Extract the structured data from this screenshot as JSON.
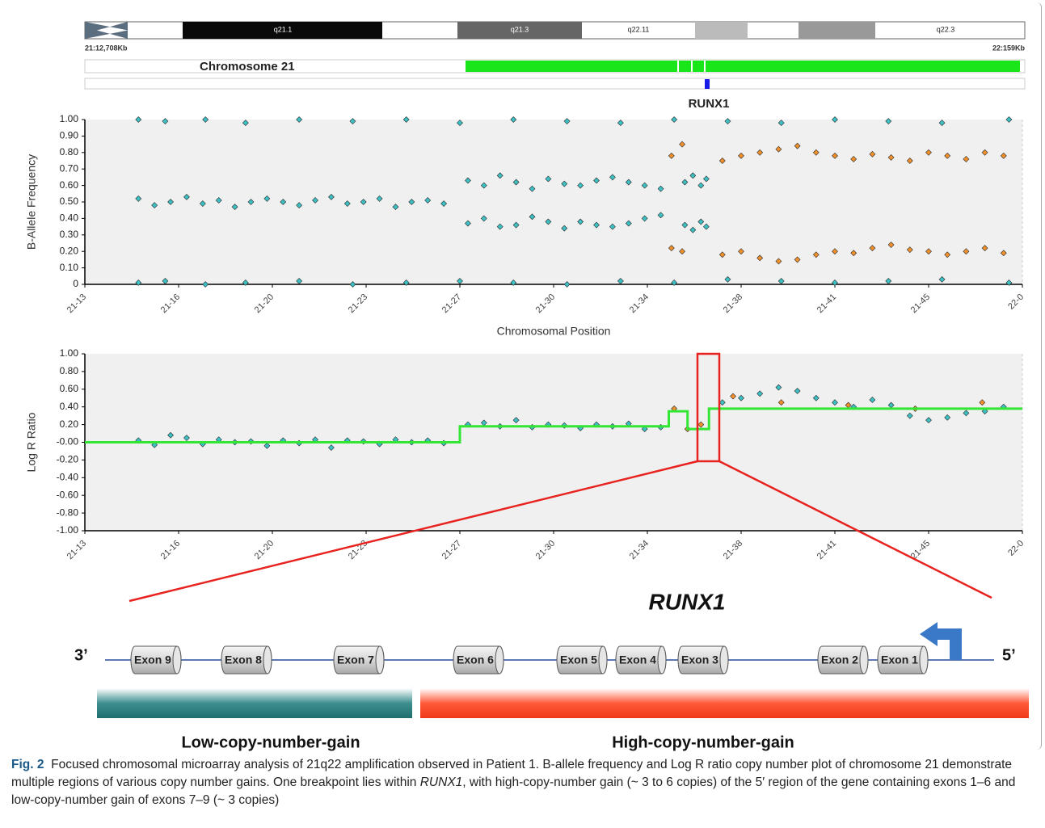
{
  "ideogram": {
    "bands": [
      "q21.1",
      "q21.3",
      "q22.11",
      "q22.3"
    ],
    "start_label": "21:12,708Kb",
    "end_label": "22:159Kb",
    "track_label": "Chromosome 21",
    "gene_label": "RUNX1"
  },
  "chart_data": [
    {
      "type": "scatter",
      "ylabel": "B-Allele Frequency",
      "xlabel": "Chromosomal Position",
      "xlim": [
        13,
        48
      ],
      "xticks": [
        {
          "value": 13,
          "label": "21-13"
        },
        {
          "value": 16.5,
          "label": "21-16"
        },
        {
          "value": 20,
          "label": "21-20"
        },
        {
          "value": 23.5,
          "label": "21-23"
        },
        {
          "value": 27,
          "label": "21-27"
        },
        {
          "value": 30.5,
          "label": "21-30"
        },
        {
          "value": 34,
          "label": "21-34"
        },
        {
          "value": 37.5,
          "label": "21-38"
        },
        {
          "value": 41,
          "label": "21-41"
        },
        {
          "value": 44.5,
          "label": "21-45"
        },
        {
          "value": 48,
          "label": "22-0"
        }
      ],
      "ylim": [
        0,
        1
      ],
      "yticks": [
        0,
        {
          "value": 0.1,
          "label": "0.10"
        },
        {
          "value": 0.2,
          "label": "0.20"
        },
        {
          "value": 0.3,
          "label": "0.30"
        },
        {
          "value": 0.4,
          "label": "0.40"
        },
        {
          "value": 0.5,
          "label": "0.50"
        },
        {
          "value": 0.6,
          "label": "0.60"
        },
        {
          "value": 0.7,
          "label": "0.70"
        },
        {
          "value": 0.8,
          "label": "0.80"
        },
        {
          "value": 0.9,
          "label": "0.90"
        },
        {
          "value": 1,
          "label": "1.00"
        }
      ],
      "series": [
        {
          "color": "#3cc0c4",
          "x": [
            15,
            16,
            17.5,
            19,
            21,
            23,
            25,
            27,
            29,
            31,
            33,
            35,
            37,
            39,
            41,
            43,
            45,
            47.5
          ],
          "values": [
            1,
            0.99,
            1,
            0.98,
            1,
            0.99,
            1,
            0.98,
            1,
            0.99,
            0.98,
            1,
            0.99,
            0.98,
            1,
            0.99,
            0.98,
            1
          ]
        },
        {
          "color": "#3cc0c4",
          "x": [
            15,
            16,
            17.5,
            19,
            21,
            23,
            25,
            27,
            29,
            31,
            33,
            35,
            37,
            39,
            41,
            43,
            45,
            47.5
          ],
          "values": [
            0.01,
            0.02,
            0,
            0.01,
            0.02,
            0,
            0.01,
            0.02,
            0.01,
            0,
            0.02,
            0.01,
            0.03,
            0.02,
            0.01,
            0.02,
            0.03,
            0.01
          ]
        },
        {
          "color": "#3cc0c4",
          "x": [
            15,
            15.6,
            16.2,
            16.8,
            17.4,
            18,
            18.6,
            19.2,
            19.8,
            20.4,
            21,
            21.6,
            22.2,
            22.8,
            23.4,
            24,
            24.6,
            25.2,
            25.8,
            26.4
          ],
          "values": [
            0.52,
            0.48,
            0.5,
            0.53,
            0.49,
            0.51,
            0.47,
            0.5,
            0.52,
            0.5,
            0.48,
            0.51,
            0.53,
            0.49,
            0.5,
            0.52,
            0.47,
            0.5,
            0.51,
            0.49
          ]
        },
        {
          "color": "#3cc0c4",
          "x": [
            27.3,
            27.9,
            28.5,
            29.1,
            29.7,
            30.3,
            30.9,
            31.5,
            32.1,
            32.7,
            33.3,
            33.9,
            34.5,
            35.4,
            35.7,
            36,
            36.2
          ],
          "values": [
            0.63,
            0.6,
            0.66,
            0.62,
            0.58,
            0.64,
            0.61,
            0.6,
            0.63,
            0.65,
            0.62,
            0.6,
            0.58,
            0.62,
            0.66,
            0.6,
            0.64
          ]
        },
        {
          "color": "#3cc0c4",
          "x": [
            27.3,
            27.9,
            28.5,
            29.1,
            29.7,
            30.3,
            30.9,
            31.5,
            32.1,
            32.7,
            33.3,
            33.9,
            34.5,
            35.4,
            35.7,
            36,
            36.2
          ],
          "values": [
            0.37,
            0.4,
            0.35,
            0.36,
            0.41,
            0.38,
            0.34,
            0.38,
            0.36,
            0.35,
            0.37,
            0.4,
            0.42,
            0.36,
            0.33,
            0.38,
            0.35
          ]
        },
        {
          "color": "#f0902c",
          "x": [
            34.9,
            35.3,
            36.8,
            37.5,
            38.2,
            38.9,
            39.6,
            40.3,
            41,
            41.7,
            42.4,
            43.1,
            43.8,
            44.5,
            45.2,
            45.9,
            46.6,
            47.3
          ],
          "values": [
            0.78,
            0.85,
            0.75,
            0.78,
            0.8,
            0.82,
            0.84,
            0.8,
            0.78,
            0.76,
            0.79,
            0.77,
            0.75,
            0.8,
            0.78,
            0.76,
            0.8,
            0.78
          ]
        },
        {
          "color": "#f0902c",
          "x": [
            34.9,
            35.3,
            36.8,
            37.5,
            38.2,
            38.9,
            39.6,
            40.3,
            41,
            41.7,
            42.4,
            43.1,
            43.8,
            44.5,
            45.2,
            45.9,
            46.6,
            47.3
          ],
          "values": [
            0.22,
            0.2,
            0.18,
            0.2,
            0.16,
            0.14,
            0.15,
            0.18,
            0.2,
            0.19,
            0.22,
            0.24,
            0.21,
            0.2,
            0.18,
            0.2,
            0.22,
            0.19
          ]
        }
      ]
    },
    {
      "type": "scatter",
      "ylabel": "Log R Ratio",
      "xlim": [
        13,
        48
      ],
      "xticks": [
        {
          "value": 13,
          "label": "21-13"
        },
        {
          "value": 16.5,
          "label": "21-16"
        },
        {
          "value": 20,
          "label": "21-20"
        },
        {
          "value": 23.5,
          "label": "21-23"
        },
        {
          "value": 27,
          "label": "21-27"
        },
        {
          "value": 30.5,
          "label": "21-30"
        },
        {
          "value": 34,
          "label": "21-34"
        },
        {
          "value": 37.5,
          "label": "21-38"
        },
        {
          "value": 41,
          "label": "21-41"
        },
        {
          "value": 44.5,
          "label": "21-45"
        },
        {
          "value": 48,
          "label": "22-0"
        }
      ],
      "ylim": [
        -1,
        1
      ],
      "yticks": [
        {
          "value": -1,
          "label": "-1.00"
        },
        {
          "value": -0.8,
          "label": "-0.80"
        },
        {
          "value": -0.6,
          "label": "-0.60"
        },
        {
          "value": -0.4,
          "label": "-0.40"
        },
        {
          "value": -0.2,
          "label": "-0.20"
        },
        {
          "value": 0,
          "label": "-0.00"
        },
        {
          "value": 0.2,
          "label": "0.20"
        },
        {
          "value": 0.4,
          "label": "0.40"
        },
        {
          "value": 0.6,
          "label": "0.60"
        },
        {
          "value": 0.8,
          "label": "0.80"
        },
        {
          "value": 1,
          "label": "1.00"
        }
      ],
      "series": [
        {
          "color": "#3cc0c4",
          "x": [
            15,
            15.6,
            16.2,
            16.8,
            17.4,
            18,
            18.6,
            19.2,
            19.8,
            20.4,
            21,
            21.6,
            22.2,
            22.8,
            23.4,
            24,
            24.6,
            25.2,
            25.8,
            26.4,
            27.3,
            27.9,
            28.5,
            29.1,
            29.7,
            30.3,
            30.9,
            31.5,
            32.1,
            32.7,
            33.3,
            33.9,
            34.5,
            36.8,
            37.5,
            38.2,
            38.9,
            39.6,
            40.3,
            41,
            41.7,
            42.4,
            43.1,
            43.8,
            44.5,
            45.2,
            45.9,
            46.6,
            47.3
          ],
          "values": [
            0.02,
            -0.03,
            0.08,
            0.05,
            -0.02,
            0.03,
            0,
            0.01,
            -0.04,
            0.02,
            -0.01,
            0.03,
            -0.06,
            0.02,
            0.01,
            -0.02,
            0.03,
            0,
            0.02,
            -0.01,
            0.2,
            0.22,
            0.18,
            0.25,
            0.17,
            0.2,
            0.19,
            0.16,
            0.2,
            0.18,
            0.21,
            0.15,
            0.17,
            0.45,
            0.5,
            0.55,
            0.62,
            0.58,
            0.5,
            0.45,
            0.4,
            0.48,
            0.42,
            0.3,
            0.25,
            0.28,
            0.33,
            0.35,
            0.4
          ]
        },
        {
          "color": "#f0902c",
          "x": [
            35,
            35.5,
            36,
            37.2,
            39,
            41.5,
            44,
            46.5
          ],
          "values": [
            0.38,
            0.15,
            0.2,
            0.52,
            0.45,
            0.42,
            0.38,
            0.45
          ]
        },
        {
          "type": "line",
          "color": "#33e633",
          "x": [
            13,
            27,
            27,
            34.8,
            34.8,
            35.5,
            35.5,
            36.3,
            36.3,
            48
          ],
          "values": [
            0,
            0,
            0.18,
            0.18,
            0.35,
            0.35,
            0.15,
            0.15,
            0.38,
            0.38
          ]
        }
      ]
    }
  ],
  "gene": {
    "name": "RUNX1",
    "end_left": "3’",
    "end_right": "5’",
    "exons": [
      "Exon 9",
      "Exon 8",
      "Exon 7",
      "Exon 6",
      "Exon 5",
      "Exon 4",
      "Exon 3",
      "Exon 2",
      "Exon 1"
    ],
    "low_label": "Low-copy-number-gain",
    "high_label": "High-copy-number-gain"
  },
  "caption": {
    "label": "Fig. 2",
    "text_1": "Focused chromosomal microarray analysis of 21q22 amplification observed in Patient 1. B-allele frequency and Log R ratio copy number plot of chromosome 21 demonstrate multiple regions of various copy number gains. One breakpoint lies within ",
    "text_italic": "RUNX1",
    "text_2": ", with high-copy-number gain (~ 3 to 6 copies) of the 5′ region of the gene containing exons 1–6 and low-copy-number gain of exons 7–9 (~ 3 copies)"
  }
}
